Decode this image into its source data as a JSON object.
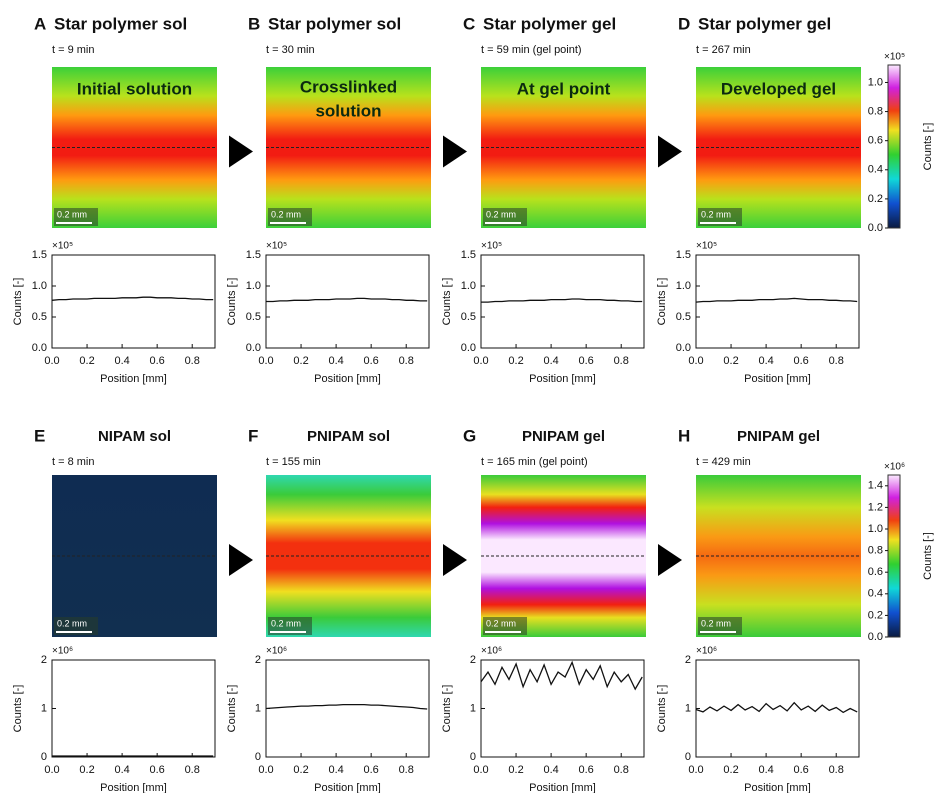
{
  "panels": [
    {
      "letter": "A",
      "title": "Star polymer sol",
      "time": "t = 9 min",
      "image_label": [
        "Initial solution"
      ]
    },
    {
      "letter": "B",
      "title": "Star polymer sol",
      "time": "t = 30 min",
      "image_label": [
        "Crosslinked",
        "solution"
      ]
    },
    {
      "letter": "C",
      "title": "Star polymer gel",
      "time": "t = 59 min (gel point)",
      "image_label": [
        "At gel point"
      ]
    },
    {
      "letter": "D",
      "title": "Star polymer gel",
      "time": "t = 267 min",
      "image_label": [
        "Developed gel"
      ]
    },
    {
      "letter": "E",
      "title": "NIPAM sol",
      "time": "t = 8 min"
    },
    {
      "letter": "F",
      "title": "PNIPAM sol",
      "time": "t = 155 min"
    },
    {
      "letter": "G",
      "title": "PNIPAM gel",
      "time": "t = 165 min (gel point)"
    },
    {
      "letter": "H",
      "title": "PNIPAM gel",
      "time": "t = 429 min"
    }
  ],
  "scale_bar": "0.2 mm",
  "colorbars": [
    {
      "multiplier": "×10⁵",
      "label": "Counts [-]",
      "lim": [
        0,
        1.12
      ],
      "ticks": [
        {
          "value": 0,
          "label": "0.0"
        },
        {
          "value": 0.2,
          "label": "0.2"
        },
        {
          "value": 0.4,
          "label": "0.4"
        },
        {
          "value": 0.6,
          "label": "0.6"
        },
        {
          "value": 0.8,
          "label": "0.8"
        },
        {
          "value": 1.0,
          "label": "1.0"
        }
      ]
    },
    {
      "multiplier": "×10⁶",
      "label": "Counts [-]",
      "lim": [
        0,
        1.5
      ],
      "ticks": [
        {
          "value": 0,
          "label": "0.0"
        },
        {
          "value": 0.2,
          "label": "0.2"
        },
        {
          "value": 0.4,
          "label": "0.4"
        },
        {
          "value": 0.6,
          "label": "0.6"
        },
        {
          "value": 0.8,
          "label": "0.8"
        },
        {
          "value": 1.0,
          "label": "1.0"
        },
        {
          "value": 1.2,
          "label": "1.2"
        },
        {
          "value": 1.4,
          "label": "1.4"
        }
      ]
    }
  ],
  "chart_data": [
    {
      "type": "line",
      "multiplier": "×10⁵",
      "ylabel": "Counts [-]",
      "xlabel": "Position [mm]",
      "color": "#111111",
      "x": [
        0,
        0.04,
        0.08,
        0.12,
        0.16,
        0.2,
        0.24,
        0.28,
        0.32,
        0.36,
        0.4,
        0.44,
        0.48,
        0.52,
        0.56,
        0.6,
        0.64,
        0.68,
        0.72,
        0.76,
        0.8,
        0.84,
        0.88,
        0.92
      ],
      "values": [
        0.77,
        0.78,
        0.78,
        0.79,
        0.79,
        0.79,
        0.8,
        0.8,
        0.8,
        0.8,
        0.81,
        0.81,
        0.81,
        0.82,
        0.82,
        0.81,
        0.81,
        0.81,
        0.8,
        0.8,
        0.79,
        0.79,
        0.78,
        0.78
      ],
      "xlim": [
        0,
        0.93
      ],
      "ylim": [
        0,
        1.5
      ],
      "xticks": [
        {
          "value": 0,
          "label": "0.0"
        },
        {
          "value": 0.2,
          "label": "0.2"
        },
        {
          "value": 0.4,
          "label": "0.4"
        },
        {
          "value": 0.6,
          "label": "0.6"
        },
        {
          "value": 0.8,
          "label": "0.8"
        }
      ],
      "yticks": [
        {
          "value": 0,
          "label": "0.0"
        },
        {
          "value": 0.5,
          "label": "0.5"
        },
        {
          "value": 1.0,
          "label": "1.0"
        },
        {
          "value": 1.5,
          "label": "1.5"
        }
      ]
    },
    {
      "type": "line",
      "multiplier": "×10⁵",
      "ylabel": "Counts [-]",
      "xlabel": "Position [mm]",
      "color": "#111111",
      "x": [
        0,
        0.04,
        0.08,
        0.12,
        0.16,
        0.2,
        0.24,
        0.28,
        0.32,
        0.36,
        0.4,
        0.44,
        0.48,
        0.52,
        0.56,
        0.6,
        0.64,
        0.68,
        0.72,
        0.76,
        0.8,
        0.84,
        0.88,
        0.92
      ],
      "values": [
        0.75,
        0.75,
        0.76,
        0.76,
        0.77,
        0.77,
        0.77,
        0.78,
        0.78,
        0.78,
        0.79,
        0.79,
        0.79,
        0.8,
        0.8,
        0.79,
        0.79,
        0.79,
        0.78,
        0.78,
        0.77,
        0.77,
        0.76,
        0.76
      ],
      "xlim": [
        0,
        0.93
      ],
      "ylim": [
        0,
        1.5
      ],
      "xticks": [
        {
          "value": 0,
          "label": "0.0"
        },
        {
          "value": 0.2,
          "label": "0.2"
        },
        {
          "value": 0.4,
          "label": "0.4"
        },
        {
          "value": 0.6,
          "label": "0.6"
        },
        {
          "value": 0.8,
          "label": "0.8"
        }
      ],
      "yticks": [
        {
          "value": 0,
          "label": "0.0"
        },
        {
          "value": 0.5,
          "label": "0.5"
        },
        {
          "value": 1.0,
          "label": "1.0"
        },
        {
          "value": 1.5,
          "label": "1.5"
        }
      ]
    },
    {
      "type": "line",
      "multiplier": "×10⁵",
      "ylabel": "Counts [-]",
      "xlabel": "Position [mm]",
      "color": "#111111",
      "x": [
        0,
        0.04,
        0.08,
        0.12,
        0.16,
        0.2,
        0.24,
        0.28,
        0.32,
        0.36,
        0.4,
        0.44,
        0.48,
        0.52,
        0.56,
        0.6,
        0.64,
        0.68,
        0.72,
        0.76,
        0.8,
        0.84,
        0.88,
        0.92
      ],
      "values": [
        0.74,
        0.74,
        0.75,
        0.75,
        0.76,
        0.76,
        0.76,
        0.77,
        0.77,
        0.77,
        0.78,
        0.78,
        0.78,
        0.79,
        0.79,
        0.78,
        0.78,
        0.78,
        0.77,
        0.77,
        0.76,
        0.76,
        0.75,
        0.75
      ],
      "xlim": [
        0,
        0.93
      ],
      "ylim": [
        0,
        1.5
      ],
      "xticks": [
        {
          "value": 0,
          "label": "0.0"
        },
        {
          "value": 0.2,
          "label": "0.2"
        },
        {
          "value": 0.4,
          "label": "0.4"
        },
        {
          "value": 0.6,
          "label": "0.6"
        },
        {
          "value": 0.8,
          "label": "0.8"
        }
      ],
      "yticks": [
        {
          "value": 0,
          "label": "0.0"
        },
        {
          "value": 0.5,
          "label": "0.5"
        },
        {
          "value": 1.0,
          "label": "1.0"
        },
        {
          "value": 1.5,
          "label": "1.5"
        }
      ]
    },
    {
      "type": "line",
      "multiplier": "×10⁵",
      "ylabel": "Counts [-]",
      "xlabel": "Position [mm]",
      "color": "#111111",
      "x": [
        0,
        0.04,
        0.08,
        0.12,
        0.16,
        0.2,
        0.24,
        0.28,
        0.32,
        0.36,
        0.4,
        0.44,
        0.48,
        0.52,
        0.56,
        0.6,
        0.64,
        0.68,
        0.72,
        0.76,
        0.8,
        0.84,
        0.88,
        0.92
      ],
      "values": [
        0.74,
        0.75,
        0.75,
        0.76,
        0.76,
        0.76,
        0.77,
        0.77,
        0.77,
        0.78,
        0.78,
        0.78,
        0.79,
        0.79,
        0.8,
        0.79,
        0.78,
        0.78,
        0.78,
        0.77,
        0.77,
        0.76,
        0.76,
        0.75
      ],
      "xlim": [
        0,
        0.93
      ],
      "ylim": [
        0,
        1.5
      ],
      "xticks": [
        {
          "value": 0,
          "label": "0.0"
        },
        {
          "value": 0.2,
          "label": "0.2"
        },
        {
          "value": 0.4,
          "label": "0.4"
        },
        {
          "value": 0.6,
          "label": "0.6"
        },
        {
          "value": 0.8,
          "label": "0.8"
        }
      ],
      "yticks": [
        {
          "value": 0,
          "label": "0.0"
        },
        {
          "value": 0.5,
          "label": "0.5"
        },
        {
          "value": 1.0,
          "label": "1.0"
        },
        {
          "value": 1.5,
          "label": "1.5"
        }
      ]
    },
    {
      "type": "line",
      "multiplier": "×10⁶",
      "ylabel": "Counts [-]",
      "xlabel": "Position [mm]",
      "color": "#111111",
      "x": [
        0,
        0.04,
        0.08,
        0.12,
        0.16,
        0.2,
        0.24,
        0.28,
        0.32,
        0.36,
        0.4,
        0.44,
        0.48,
        0.52,
        0.56,
        0.6,
        0.64,
        0.68,
        0.72,
        0.76,
        0.8,
        0.84,
        0.88,
        0.92
      ],
      "values": [
        0.02,
        0.02,
        0.02,
        0.02,
        0.02,
        0.02,
        0.02,
        0.02,
        0.02,
        0.02,
        0.02,
        0.02,
        0.02,
        0.02,
        0.02,
        0.02,
        0.02,
        0.02,
        0.02,
        0.02,
        0.02,
        0.02,
        0.02,
        0.02
      ],
      "xlim": [
        0,
        0.93
      ],
      "ylim": [
        0,
        2
      ],
      "xticks": [
        {
          "value": 0,
          "label": "0.0"
        },
        {
          "value": 0.2,
          "label": "0.2"
        },
        {
          "value": 0.4,
          "label": "0.4"
        },
        {
          "value": 0.6,
          "label": "0.6"
        },
        {
          "value": 0.8,
          "label": "0.8"
        }
      ],
      "yticks": [
        0,
        1,
        2
      ]
    },
    {
      "type": "line",
      "multiplier": "×10⁶",
      "ylabel": "Counts [-]",
      "xlabel": "Position [mm]",
      "color": "#111111",
      "x": [
        0,
        0.04,
        0.08,
        0.12,
        0.16,
        0.2,
        0.24,
        0.28,
        0.32,
        0.36,
        0.4,
        0.44,
        0.48,
        0.52,
        0.56,
        0.6,
        0.64,
        0.68,
        0.72,
        0.76,
        0.8,
        0.84,
        0.88,
        0.92
      ],
      "values": [
        1.0,
        1.01,
        1.02,
        1.03,
        1.04,
        1.05,
        1.05,
        1.06,
        1.06,
        1.07,
        1.07,
        1.08,
        1.08,
        1.08,
        1.08,
        1.07,
        1.07,
        1.06,
        1.05,
        1.04,
        1.03,
        1.02,
        1.0,
        0.99
      ],
      "xlim": [
        0,
        0.93
      ],
      "ylim": [
        0,
        2
      ],
      "xticks": [
        {
          "value": 0,
          "label": "0.0"
        },
        {
          "value": 0.2,
          "label": "0.2"
        },
        {
          "value": 0.4,
          "label": "0.4"
        },
        {
          "value": 0.6,
          "label": "0.6"
        },
        {
          "value": 0.8,
          "label": "0.8"
        }
      ],
      "yticks": [
        0,
        1,
        2
      ]
    },
    {
      "type": "line",
      "multiplier": "×10⁶",
      "ylabel": "Counts [-]",
      "xlabel": "Position [mm]",
      "color": "#111111",
      "x": [
        0,
        0.04,
        0.08,
        0.12,
        0.16,
        0.2,
        0.24,
        0.28,
        0.32,
        0.36,
        0.4,
        0.44,
        0.48,
        0.52,
        0.56,
        0.6,
        0.64,
        0.68,
        0.72,
        0.76,
        0.8,
        0.84,
        0.88,
        0.92
      ],
      "values": [
        1.55,
        1.75,
        1.5,
        1.85,
        1.6,
        1.92,
        1.45,
        1.8,
        1.55,
        1.9,
        1.5,
        1.75,
        1.65,
        1.95,
        1.5,
        1.8,
        1.6,
        1.88,
        1.45,
        1.75,
        1.55,
        1.7,
        1.4,
        1.65
      ],
      "xlim": [
        0,
        0.93
      ],
      "ylim": [
        0,
        2
      ],
      "xticks": [
        {
          "value": 0,
          "label": "0.0"
        },
        {
          "value": 0.2,
          "label": "0.2"
        },
        {
          "value": 0.4,
          "label": "0.4"
        },
        {
          "value": 0.6,
          "label": "0.6"
        },
        {
          "value": 0.8,
          "label": "0.8"
        }
      ],
      "yticks": [
        0,
        1,
        2
      ]
    },
    {
      "type": "line",
      "multiplier": "×10⁶",
      "ylabel": "Counts [-]",
      "xlabel": "Position [mm]",
      "color": "#111111",
      "x": [
        0,
        0.04,
        0.08,
        0.12,
        0.16,
        0.2,
        0.24,
        0.28,
        0.32,
        0.36,
        0.4,
        0.44,
        0.48,
        0.52,
        0.56,
        0.6,
        0.64,
        0.68,
        0.72,
        0.76,
        0.8,
        0.84,
        0.88,
        0.92
      ],
      "values": [
        0.98,
        0.93,
        1.03,
        0.95,
        1.05,
        0.96,
        1.08,
        0.97,
        1.04,
        0.94,
        1.1,
        0.98,
        1.06,
        0.95,
        1.12,
        0.97,
        1.05,
        0.94,
        1.07,
        0.96,
        1.02,
        0.92,
        1.0,
        0.93
      ],
      "xlim": [
        0,
        0.93
      ],
      "ylim": [
        0,
        2
      ],
      "xticks": [
        {
          "value": 0,
          "label": "0.0"
        },
        {
          "value": 0.2,
          "label": "0.2"
        },
        {
          "value": 0.4,
          "label": "0.4"
        },
        {
          "value": 0.6,
          "label": "0.6"
        },
        {
          "value": 0.8,
          "label": "0.8"
        }
      ],
      "yticks": [
        0,
        1,
        2
      ]
    }
  ]
}
